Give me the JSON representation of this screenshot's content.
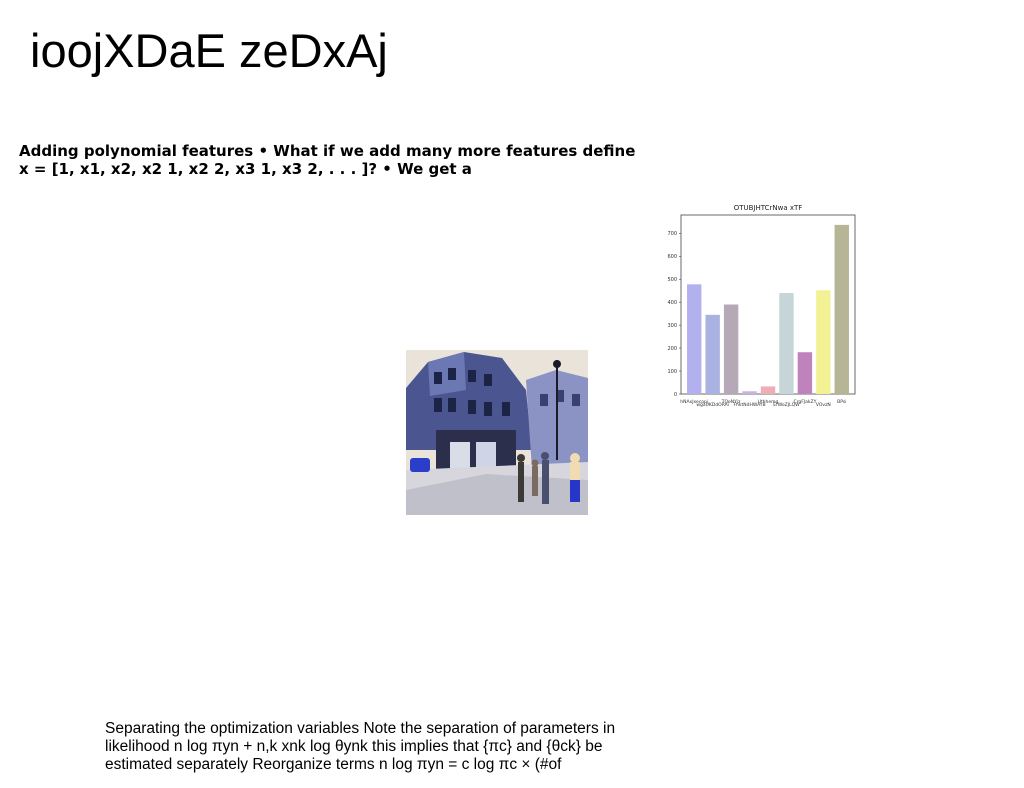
{
  "slide": {
    "title": "ioojXDaE zeDxAj",
    "paragraph_bold": "Adding polynomial features • What if we add many more features define x = [1, x1, x2, x2 1, x2 2, x3 1, x3 2, . . . ]? • We get a",
    "paragraph_bottom": "Separating the optimization variables Note the separation of parameters in likelihood  n log πyn +  n,k xnk log θynk this implies that {πc} and {θck} be estimated separately Reorganize terms  n log πyn =  c log πc × (#of"
  },
  "chart_data": {
    "type": "bar",
    "title": "OTUBJHTCrNwa xTF",
    "categories": [
      "hNAxJxecopj",
      "wgaUKDdORAi",
      "TQeNYjz",
      "FhktNdHWAYB",
      "Uthhemg",
      "EfWoZJLQW",
      "CrgFJakZY",
      "VOvzN",
      "BPsi"
    ],
    "values": [
      478,
      345,
      390,
      12,
      33,
      440,
      182,
      452,
      737
    ],
    "colors": [
      "#b3b0ee",
      "#a9b2e0",
      "#b5a9b8",
      "#c8b2e6",
      "#efadb6",
      "#c5d5d8",
      "#c082bd",
      "#f2f294",
      "#b6b595"
    ],
    "yticks": [
      0,
      100,
      200,
      300,
      400,
      500,
      600,
      700
    ],
    "ylim": [
      0,
      780
    ],
    "xlabel": "",
    "ylabel": "",
    "grid": false
  },
  "photo": {
    "icon": "street-photo"
  }
}
